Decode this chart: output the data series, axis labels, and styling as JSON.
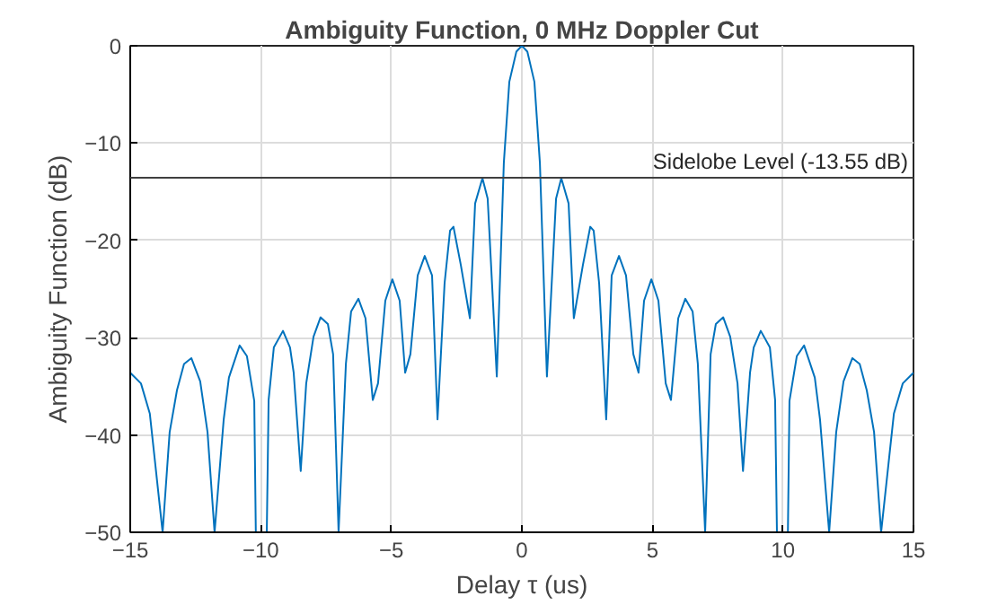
{
  "chart_data": {
    "type": "line",
    "title": "Ambiguity Function, 0 MHz Doppler Cut",
    "xlabel": "Delay τ (us)",
    "ylabel": "Ambiguity Function (dB)",
    "xlim": [
      -15,
      15
    ],
    "ylim": [
      -50,
      0
    ],
    "xticks": [
      -15,
      -10,
      -5,
      0,
      5,
      10,
      15
    ],
    "yticks": [
      -50,
      -40,
      -30,
      -20,
      -10,
      0
    ],
    "grid": true,
    "marker": "none",
    "line_style": "solid",
    "ref_lines": [
      {
        "axis": "y",
        "value": -13.55,
        "label": "Sidelobe Level (-13.55 dB)",
        "color": "#404040"
      }
    ],
    "series": [
      {
        "color": "#0072bd",
        "x": [
          -15.0,
          -14.59,
          -14.25,
          -13.76,
          -13.49,
          -13.21,
          -12.94,
          -12.66,
          -12.32,
          -12.04,
          -11.77,
          -11.42,
          -11.22,
          -10.81,
          -10.53,
          -10.25,
          -10.19,
          -9.77,
          -9.7,
          -9.5,
          -9.15,
          -8.88,
          -8.74,
          -8.47,
          -8.26,
          -7.98,
          -7.71,
          -7.43,
          -7.23,
          -7.02,
          -6.74,
          -6.54,
          -6.26,
          -5.99,
          -5.71,
          -5.51,
          -5.23,
          -4.96,
          -4.68,
          -4.47,
          -4.27,
          -3.99,
          -3.72,
          -3.44,
          -3.23,
          -2.96,
          -2.75,
          -2.62,
          -2.34,
          -1.99,
          -1.79,
          -1.51,
          -1.31,
          -0.96,
          -0.69,
          -0.48,
          -0.21,
          0,
          0.21,
          0.48,
          0.69,
          0.96,
          1.31,
          1.51,
          1.79,
          1.99,
          2.34,
          2.62,
          2.75,
          2.96,
          3.23,
          3.44,
          3.72,
          3.99,
          4.27,
          4.47,
          4.68,
          4.96,
          5.23,
          5.51,
          5.71,
          5.99,
          6.26,
          6.54,
          6.74,
          7.02,
          7.23,
          7.43,
          7.71,
          7.98,
          8.26,
          8.47,
          8.74,
          8.88,
          9.15,
          9.5,
          9.7,
          9.77,
          10.19,
          10.25,
          10.53,
          10.81,
          11.22,
          11.42,
          11.77,
          12.04,
          12.32,
          12.66,
          12.94,
          13.21,
          13.49,
          13.76,
          14.25,
          14.59,
          15.0
        ],
        "values": [
          -33.6,
          -34.7,
          -37.8,
          -50,
          -39.7,
          -35.4,
          -32.7,
          -32.1,
          -34.5,
          -39.7,
          -50,
          -38.4,
          -34.1,
          -30.8,
          -31.9,
          -36.5,
          -50,
          -50,
          -36.4,
          -31.0,
          -29.3,
          -31.0,
          -33.6,
          -43.7,
          -34.7,
          -29.9,
          -27.9,
          -28.6,
          -31.7,
          -50,
          -32.7,
          -27.3,
          -26.0,
          -28.0,
          -36.4,
          -34.7,
          -26.2,
          -24.0,
          -26.2,
          -33.6,
          -31.7,
          -23.6,
          -21.6,
          -23.6,
          -38.4,
          -24.4,
          -19.0,
          -18.6,
          -22.5,
          -28.0,
          -16.2,
          -13.6,
          -15.7,
          -34.0,
          -12.0,
          -3.7,
          -0.6,
          0,
          -0.6,
          -3.7,
          -12.0,
          -34.0,
          -15.7,
          -13.6,
          -16.2,
          -28.0,
          -22.5,
          -18.6,
          -19.0,
          -24.4,
          -38.4,
          -23.6,
          -21.6,
          -23.6,
          -31.7,
          -33.6,
          -26.2,
          -24.0,
          -26.2,
          -34.7,
          -36.4,
          -28.0,
          -26.0,
          -27.3,
          -32.7,
          -50,
          -31.7,
          -28.6,
          -27.9,
          -29.9,
          -34.7,
          -43.7,
          -33.6,
          -31.0,
          -29.3,
          -31.0,
          -36.4,
          -50,
          -50,
          -36.5,
          -31.9,
          -30.8,
          -34.1,
          -38.4,
          -50,
          -39.7,
          -34.5,
          -32.1,
          -32.7,
          -35.4,
          -39.7,
          -50,
          -37.8,
          -34.7,
          -33.6
        ]
      }
    ]
  }
}
